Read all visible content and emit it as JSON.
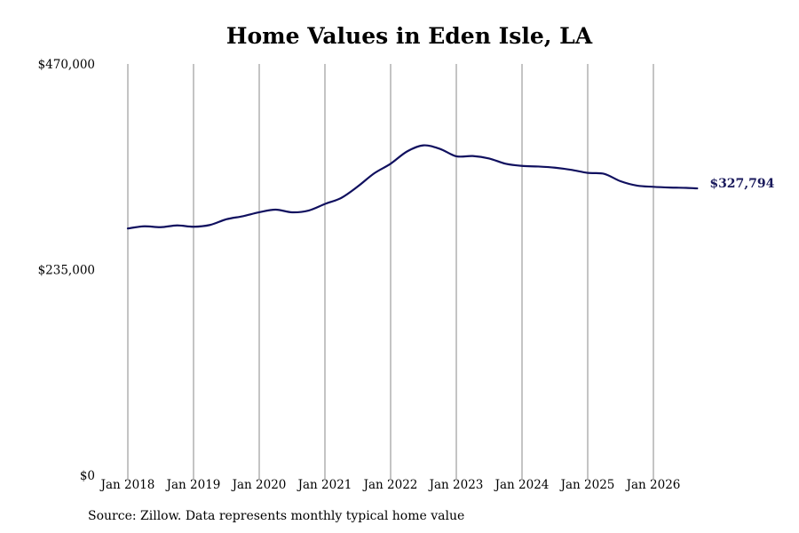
{
  "source_note": "Source: Zillow. Data represents monthly typical home value",
  "chart_data": {
    "type": "line",
    "title": "Home Values in Eden Isle, LA",
    "xlabel": "",
    "ylabel": "",
    "ylim": [
      0,
      470000
    ],
    "y_ticks": [
      "$470,000",
      "$235,000",
      "$0"
    ],
    "y_tick_values": [
      470000,
      235000,
      0
    ],
    "x_ticks": [
      "Jan 2018",
      "Jan 2019",
      "Jan 2020",
      "Jan 2021",
      "Jan 2022",
      "Jan 2023",
      "Jan 2024",
      "Jan 2025",
      "Jan 2026"
    ],
    "x_tick_years": [
      2018,
      2019,
      2020,
      2021,
      2022,
      2023,
      2024,
      2025,
      2026
    ],
    "grid": "vertical",
    "line_color": "#10105f",
    "end_label": "$327,794",
    "series": [
      {
        "x": [
          "2018-01",
          "2018-04",
          "2018-07",
          "2018-10",
          "2019-01",
          "2019-04",
          "2019-07",
          "2019-10",
          "2020-01",
          "2020-04",
          "2020-07",
          "2020-10",
          "2021-01",
          "2021-04",
          "2021-07",
          "2021-10",
          "2022-01",
          "2022-04",
          "2022-07",
          "2022-10",
          "2023-01",
          "2023-04",
          "2023-07",
          "2023-10",
          "2024-01",
          "2024-04",
          "2024-07",
          "2024-10",
          "2025-01",
          "2025-04",
          "2025-07",
          "2025-10",
          "2026-01",
          "2026-04",
          "2026-07",
          "2026-09"
        ],
        "y": [
          282000,
          284500,
          283500,
          285500,
          284000,
          286000,
          292500,
          296000,
          300500,
          303500,
          300500,
          302500,
          310000,
          317000,
          330000,
          345000,
          356000,
          370000,
          377000,
          373000,
          364500,
          364800,
          362000,
          356000,
          353500,
          352800,
          351500,
          349000,
          345500,
          344500,
          336000,
          331000,
          329600,
          328800,
          328400,
          327794
        ]
      }
    ]
  }
}
